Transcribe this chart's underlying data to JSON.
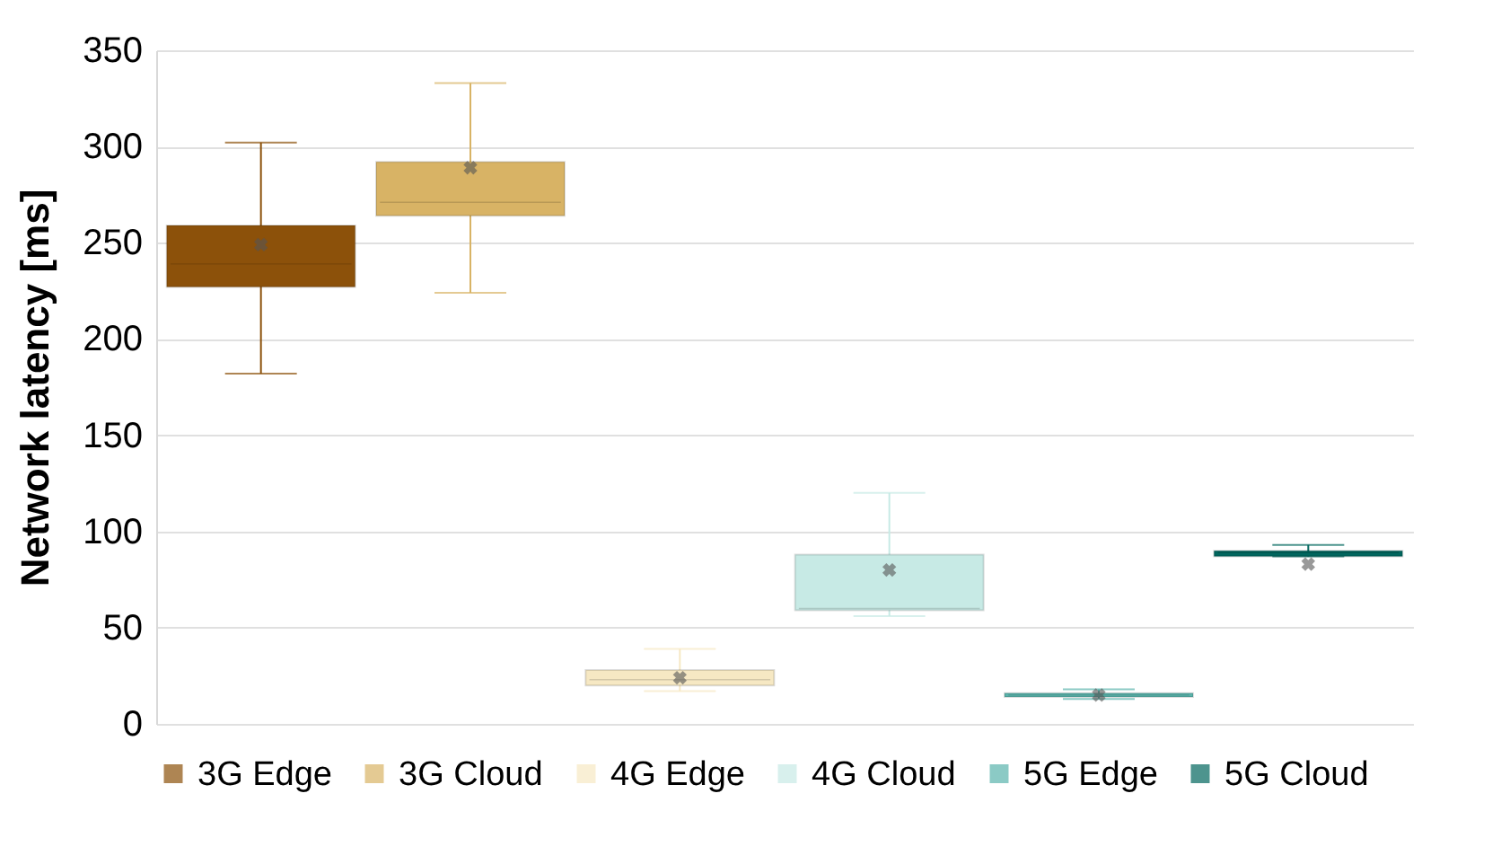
{
  "chart_data": {
    "type": "box",
    "ylabel": "Network latency [ms]",
    "categories": [
      null
    ],
    "series": [
      {
        "name": "3G Edge",
        "color": "#8c510a",
        "boxes": [
          {
            "low": 182,
            "q1": 227,
            "median": 239,
            "q3": 259,
            "high": 302,
            "mean": 249
          }
        ]
      },
      {
        "name": "3G Cloud",
        "color": "#d8b365",
        "boxes": [
          {
            "low": 224,
            "q1": 264,
            "median": 271,
            "q3": 292,
            "high": 333,
            "mean": 289
          }
        ]
      },
      {
        "name": "4G Edge",
        "color": "#f6e8c3",
        "boxes": [
          {
            "low": 17,
            "q1": 20,
            "median": 23,
            "q3": 28,
            "high": 39,
            "mean": 24
          }
        ]
      },
      {
        "name": "4G Cloud",
        "color": "#c7eae5",
        "boxes": [
          {
            "low": 56,
            "q1": 59,
            "median": 60,
            "q3": 88,
            "high": 120,
            "mean": 80
          }
        ]
      },
      {
        "name": "5G Edge",
        "color": "#5ab4ac",
        "boxes": [
          {
            "low": 13,
            "q1": 14,
            "median": 15,
            "q3": 16,
            "high": 18,
            "mean": 15
          }
        ]
      },
      {
        "name": "5G Cloud",
        "color": "#01665e",
        "boxes": [
          {
            "low": 87,
            "q1": 87,
            "median": 89,
            "q3": 90,
            "high": 93,
            "mean": 83
          }
        ]
      }
    ],
    "ylim": [
      0,
      350
    ],
    "yticks": [
      0,
      50,
      100,
      150,
      200,
      250,
      300,
      350
    ],
    "grid": "y",
    "legend": "bottom",
    "tick_labels": "y"
  }
}
